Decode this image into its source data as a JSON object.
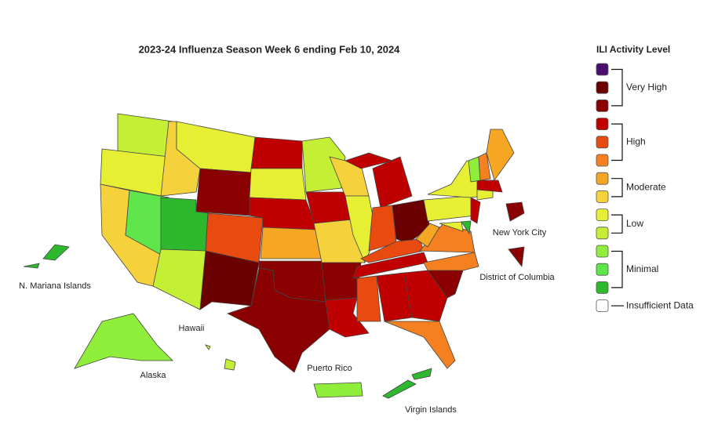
{
  "title": "2023-24 Influenza Season Week 6 ending Feb 10, 2024",
  "legend": {
    "title": "ILI Activity Level",
    "levels": [
      {
        "label": "Very High",
        "colors": [
          "#4a0f6e",
          "#6a0000",
          "#8b0000"
        ]
      },
      {
        "label": "High",
        "colors": [
          "#c00000",
          "#e84a10",
          "#f58020"
        ]
      },
      {
        "label": "Moderate",
        "colors": [
          "#f5a623",
          "#f5d23c"
        ]
      },
      {
        "label": "Low",
        "colors": [
          "#e7ef35",
          "#c5ef35"
        ]
      },
      {
        "label": "Minimal",
        "colors": [
          "#8fee3a",
          "#5ee64a",
          "#2db82d"
        ]
      },
      {
        "label": "Insufficient Data",
        "colors": [
          "#ffffff"
        ]
      }
    ]
  },
  "map_labels": [
    "N. Mariana Islands",
    "Hawaii",
    "Alaska",
    "Puerto Rico",
    "Virgin Islands",
    "New York City",
    "District of Columbia"
  ]
}
